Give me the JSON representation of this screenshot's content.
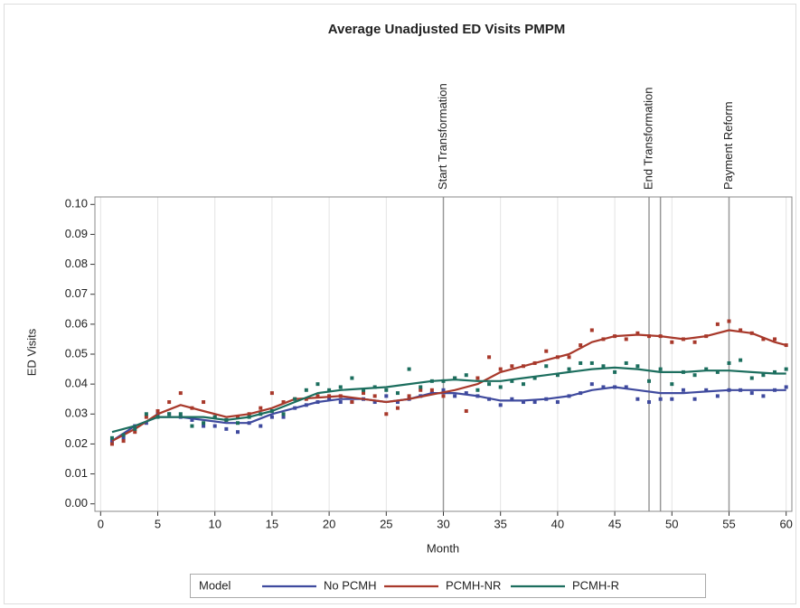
{
  "chart_data": {
    "type": "scatter",
    "title": "Average Unadjusted ED Visits PMPM",
    "x_label": "Month",
    "y_label": "ED Visits",
    "legend_title": "Model",
    "xlim": [
      -0.5,
      60.5
    ],
    "ylim": [
      -0.0025,
      0.1025
    ],
    "xticks": [
      0,
      5,
      10,
      15,
      20,
      25,
      30,
      35,
      40,
      45,
      50,
      55,
      60
    ],
    "yticks": [
      {
        "value": 0,
        "label": "0.00"
      },
      {
        "value": 0.01,
        "label": "0.01"
      },
      {
        "value": 0.02,
        "label": "0.02"
      },
      {
        "value": 0.03,
        "label": "0.03"
      },
      {
        "value": 0.04,
        "label": "0.04"
      },
      {
        "value": 0.05,
        "label": "0.05"
      },
      {
        "value": 0.06,
        "label": "0.06"
      },
      {
        "value": 0.07,
        "label": "0.07"
      },
      {
        "value": 0.08,
        "label": "0.08"
      },
      {
        "value": 0.09,
        "label": "0.09"
      },
      {
        "value": 0.1,
        "label": "0.10"
      }
    ],
    "grid": true,
    "legend_position": "bottom",
    "reflines": [
      {
        "value": 30,
        "label": "Start Transformation"
      },
      {
        "value": 48,
        "label": "End Transformation"
      },
      {
        "value": 49
      },
      {
        "value": 55,
        "label": "Payment Reform"
      }
    ],
    "x": [
      1,
      2,
      3,
      4,
      5,
      6,
      7,
      8,
      9,
      10,
      11,
      12,
      13,
      14,
      15,
      16,
      17,
      18,
      19,
      20,
      21,
      22,
      23,
      24,
      25,
      26,
      27,
      28,
      29,
      30,
      31,
      32,
      33,
      34,
      35,
      36,
      37,
      38,
      39,
      40,
      41,
      42,
      43,
      44,
      45,
      46,
      47,
      48,
      49,
      50,
      51,
      52,
      53,
      54,
      55,
      56,
      57,
      58,
      59,
      60
    ],
    "fit_x": [
      1,
      3,
      5,
      7,
      9,
      11,
      13,
      15,
      17,
      19,
      21,
      23,
      25,
      27,
      29,
      31,
      33,
      35,
      37,
      39,
      41,
      43,
      45,
      47,
      49,
      51,
      53,
      55,
      57,
      59,
      60
    ],
    "series": [
      {
        "name": "No PCMH",
        "color": "#3f4a9e",
        "values": [
          0.021,
          0.022,
          0.026,
          0.027,
          0.03,
          0.03,
          0.029,
          0.028,
          0.026,
          0.026,
          0.025,
          0.024,
          0.027,
          0.026,
          0.029,
          0.029,
          0.032,
          0.033,
          0.034,
          0.035,
          0.034,
          0.034,
          0.035,
          0.034,
          0.036,
          0.034,
          0.035,
          0.036,
          0.037,
          0.038,
          0.036,
          0.037,
          0.036,
          0.035,
          0.033,
          0.035,
          0.034,
          0.034,
          0.035,
          0.034,
          0.036,
          0.037,
          0.04,
          0.039,
          0.039,
          0.039,
          0.035,
          0.034,
          0.035,
          0.035,
          0.038,
          0.035,
          0.038,
          0.036,
          0.038,
          0.038,
          0.037,
          0.036,
          0.038,
          0.039
        ],
        "fit": [
          0.021,
          0.026,
          0.029,
          0.029,
          0.028,
          0.027,
          0.027,
          0.03,
          0.032,
          0.034,
          0.035,
          0.035,
          0.034,
          0.035,
          0.037,
          0.037,
          0.036,
          0.0345,
          0.0345,
          0.035,
          0.036,
          0.038,
          0.039,
          0.038,
          0.037,
          0.037,
          0.0375,
          0.038,
          0.038,
          0.038,
          0.038
        ]
      },
      {
        "name": "PCMH-NR",
        "color": "#a8392b",
        "values": [
          0.02,
          0.021,
          0.024,
          0.029,
          0.031,
          0.034,
          0.037,
          0.032,
          0.034,
          0.029,
          0.028,
          0.029,
          0.03,
          0.032,
          0.037,
          0.034,
          0.035,
          0.035,
          0.036,
          0.036,
          0.036,
          0.034,
          0.037,
          0.036,
          0.03,
          0.032,
          0.036,
          0.038,
          0.038,
          0.036,
          0.042,
          0.031,
          0.042,
          0.049,
          0.045,
          0.046,
          0.046,
          0.047,
          0.051,
          0.049,
          0.049,
          0.053,
          0.058,
          0.055,
          0.056,
          0.055,
          0.057,
          0.056,
          0.056,
          0.054,
          0.055,
          0.054,
          0.056,
          0.06,
          0.061,
          0.058,
          0.057,
          0.055,
          0.055,
          0.053
        ],
        "fit": [
          0.021,
          0.025,
          0.03,
          0.033,
          0.031,
          0.029,
          0.03,
          0.032,
          0.035,
          0.0355,
          0.036,
          0.035,
          0.034,
          0.035,
          0.0365,
          0.038,
          0.04,
          0.044,
          0.046,
          0.048,
          0.05,
          0.054,
          0.056,
          0.0565,
          0.056,
          0.055,
          0.056,
          0.058,
          0.057,
          0.054,
          0.053
        ]
      },
      {
        "name": "PCMH-R",
        "color": "#1c6e5e",
        "values": [
          0.022,
          0.023,
          0.025,
          0.03,
          0.029,
          0.03,
          0.03,
          0.026,
          0.027,
          0.029,
          0.028,
          0.027,
          0.029,
          0.03,
          0.031,
          0.03,
          0.035,
          0.038,
          0.04,
          0.038,
          0.039,
          0.042,
          0.038,
          0.039,
          0.038,
          0.037,
          0.045,
          0.039,
          0.041,
          0.041,
          0.042,
          0.043,
          0.038,
          0.04,
          0.039,
          0.041,
          0.04,
          0.042,
          0.046,
          0.043,
          0.045,
          0.047,
          0.047,
          0.046,
          0.044,
          0.047,
          0.046,
          0.041,
          0.045,
          0.04,
          0.044,
          0.043,
          0.045,
          0.044,
          0.047,
          0.048,
          0.042,
          0.043,
          0.044,
          0.045
        ],
        "fit": [
          0.024,
          0.026,
          0.029,
          0.029,
          0.029,
          0.028,
          0.029,
          0.031,
          0.034,
          0.037,
          0.038,
          0.0385,
          0.039,
          0.04,
          0.041,
          0.0415,
          0.041,
          0.041,
          0.042,
          0.043,
          0.044,
          0.045,
          0.0455,
          0.045,
          0.044,
          0.044,
          0.0445,
          0.0445,
          0.044,
          0.0435,
          0.0435
        ]
      }
    ]
  }
}
